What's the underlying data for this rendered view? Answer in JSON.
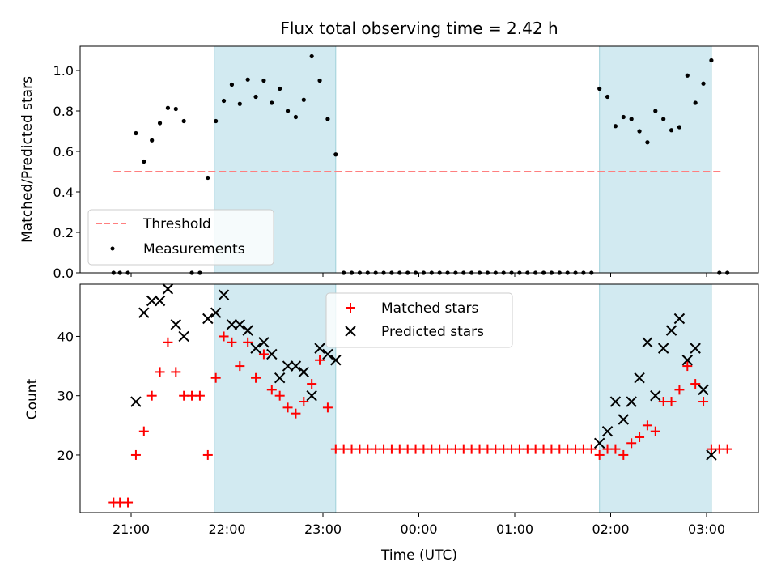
{
  "chart_data": [
    {
      "type": "scatter",
      "title": "Flux total observing time = 2.42 h",
      "xlabel": "",
      "ylabel": "Matched/Predicted stars",
      "x_axis": "time (UTC)",
      "ylim": [
        0,
        1.12
      ],
      "yticks": [
        0.0,
        0.2,
        0.4,
        0.6,
        0.8,
        1.0
      ],
      "yticklabels": [
        "0.0",
        "0.2",
        "0.4",
        "0.6",
        "0.8",
        "1.0"
      ],
      "grid": false,
      "legend_position": "lower-left",
      "shaded_intervals": [
        [
          "21:52",
          "23:08"
        ],
        [
          "01:53",
          "03:03"
        ]
      ],
      "shade_color": "#add8e6",
      "threshold": {
        "name": "Threshold",
        "value": 0.5,
        "x_range": [
          "20:49",
          "03:11"
        ],
        "color": "#ff7f7f",
        "style": "dashed"
      },
      "series": [
        {
          "name": "Measurements",
          "color": "#000000",
          "marker": "dot",
          "points": [
            [
              "20:49",
              0.0
            ],
            [
              "20:53",
              0.0
            ],
            [
              "20:58",
              0.0
            ],
            [
              "21:03",
              0.69
            ],
            [
              "21:08",
              0.55
            ],
            [
              "21:13",
              0.655
            ],
            [
              "21:18",
              0.74
            ],
            [
              "21:23",
              0.815
            ],
            [
              "21:28",
              0.81
            ],
            [
              "21:33",
              0.75
            ],
            [
              "21:38",
              0.0
            ],
            [
              "21:43",
              0.0
            ],
            [
              "21:48",
              0.47
            ],
            [
              "21:53",
              0.75
            ],
            [
              "21:58",
              0.85
            ],
            [
              "22:03",
              0.93
            ],
            [
              "22:08",
              0.835
            ],
            [
              "22:13",
              0.955
            ],
            [
              "22:18",
              0.87
            ],
            [
              "22:23",
              0.95
            ],
            [
              "22:28",
              0.84
            ],
            [
              "22:33",
              0.91
            ],
            [
              "22:38",
              0.8
            ],
            [
              "22:43",
              0.77
            ],
            [
              "22:48",
              0.855
            ],
            [
              "22:53",
              1.07
            ],
            [
              "22:58",
              0.95
            ],
            [
              "23:03",
              0.76
            ],
            [
              "23:08",
              0.585
            ],
            [
              "23:13",
              0.0
            ],
            [
              "23:18",
              0.0
            ],
            [
              "23:23",
              0.0
            ],
            [
              "23:28",
              0.0
            ],
            [
              "23:33",
              0.0
            ],
            [
              "23:38",
              0.0
            ],
            [
              "23:43",
              0.0
            ],
            [
              "23:48",
              0.0
            ],
            [
              "23:53",
              0.0
            ],
            [
              "23:58",
              0.0
            ],
            [
              "00:03",
              0.0
            ],
            [
              "00:08",
              0.0
            ],
            [
              "00:13",
              0.0
            ],
            [
              "00:18",
              0.0
            ],
            [
              "00:23",
              0.0
            ],
            [
              "00:28",
              0.0
            ],
            [
              "00:33",
              0.0
            ],
            [
              "00:38",
              0.0
            ],
            [
              "00:43",
              0.0
            ],
            [
              "00:48",
              0.0
            ],
            [
              "00:53",
              0.0
            ],
            [
              "00:58",
              0.0
            ],
            [
              "01:03",
              0.0
            ],
            [
              "01:08",
              0.0
            ],
            [
              "01:13",
              0.0
            ],
            [
              "01:18",
              0.0
            ],
            [
              "01:23",
              0.0
            ],
            [
              "01:28",
              0.0
            ],
            [
              "01:33",
              0.0
            ],
            [
              "01:38",
              0.0
            ],
            [
              "01:43",
              0.0
            ],
            [
              "01:48",
              0.0
            ],
            [
              "01:53",
              0.91
            ],
            [
              "01:58",
              0.87
            ],
            [
              "02:03",
              0.725
            ],
            [
              "02:08",
              0.77
            ],
            [
              "02:13",
              0.76
            ],
            [
              "02:18",
              0.7
            ],
            [
              "02:23",
              0.645
            ],
            [
              "02:28",
              0.8
            ],
            [
              "02:33",
              0.76
            ],
            [
              "02:38",
              0.705
            ],
            [
              "02:43",
              0.72
            ],
            [
              "02:48",
              0.975
            ],
            [
              "02:53",
              0.84
            ],
            [
              "02:58",
              0.935
            ],
            [
              "03:03",
              1.05
            ],
            [
              "03:08",
              0.0
            ],
            [
              "03:13",
              0.0
            ]
          ]
        }
      ]
    },
    {
      "type": "scatter",
      "title": "",
      "xlabel": "Time (UTC)",
      "ylabel": "Count",
      "ylim": [
        10.3,
        48.8
      ],
      "yticks": [
        20,
        30,
        40
      ],
      "yticklabels": [
        "20",
        "30",
        "40"
      ],
      "xticks": [
        "21:00",
        "22:00",
        "23:00",
        "00:00",
        "01:00",
        "02:00",
        "03:00"
      ],
      "xticklabels": [
        "21:00",
        "22:00",
        "23:00",
        "00:00",
        "01:00",
        "02:00",
        "03:00"
      ],
      "grid": false,
      "legend_position": "top-center",
      "shaded_intervals": [
        [
          "21:52",
          "23:08"
        ],
        [
          "01:53",
          "03:03"
        ]
      ],
      "shade_color": "#add8e6",
      "series": [
        {
          "name": "Matched stars",
          "color": "#ff0000",
          "marker": "plus",
          "points": [
            [
              "20:49",
              12
            ],
            [
              "20:53",
              12
            ],
            [
              "20:58",
              12
            ],
            [
              "21:03",
              20
            ],
            [
              "21:08",
              24
            ],
            [
              "21:13",
              30
            ],
            [
              "21:18",
              34
            ],
            [
              "21:23",
              39
            ],
            [
              "21:28",
              34
            ],
            [
              "21:33",
              30
            ],
            [
              "21:38",
              30
            ],
            [
              "21:43",
              30
            ],
            [
              "21:48",
              20
            ],
            [
              "21:53",
              33
            ],
            [
              "21:58",
              40
            ],
            [
              "22:03",
              39
            ],
            [
              "22:08",
              35
            ],
            [
              "22:13",
              39
            ],
            [
              "22:18",
              33
            ],
            [
              "22:23",
              37
            ],
            [
              "22:28",
              31
            ],
            [
              "22:33",
              30
            ],
            [
              "22:38",
              28
            ],
            [
              "22:43",
              27
            ],
            [
              "22:48",
              29
            ],
            [
              "22:53",
              32
            ],
            [
              "22:58",
              36
            ],
            [
              "23:03",
              28
            ],
            [
              "23:08",
              21
            ],
            [
              "23:13",
              21
            ],
            [
              "23:18",
              21
            ],
            [
              "23:23",
              21
            ],
            [
              "23:28",
              21
            ],
            [
              "23:33",
              21
            ],
            [
              "23:38",
              21
            ],
            [
              "23:43",
              21
            ],
            [
              "23:48",
              21
            ],
            [
              "23:53",
              21
            ],
            [
              "23:58",
              21
            ],
            [
              "00:03",
              21
            ],
            [
              "00:08",
              21
            ],
            [
              "00:13",
              21
            ],
            [
              "00:18",
              21
            ],
            [
              "00:23",
              21
            ],
            [
              "00:28",
              21
            ],
            [
              "00:33",
              21
            ],
            [
              "00:38",
              21
            ],
            [
              "00:43",
              21
            ],
            [
              "00:48",
              21
            ],
            [
              "00:53",
              21
            ],
            [
              "00:58",
              21
            ],
            [
              "01:03",
              21
            ],
            [
              "01:08",
              21
            ],
            [
              "01:13",
              21
            ],
            [
              "01:18",
              21
            ],
            [
              "01:23",
              21
            ],
            [
              "01:28",
              21
            ],
            [
              "01:33",
              21
            ],
            [
              "01:38",
              21
            ],
            [
              "01:43",
              21
            ],
            [
              "01:48",
              21
            ],
            [
              "01:53",
              20
            ],
            [
              "01:58",
              21
            ],
            [
              "02:03",
              21
            ],
            [
              "02:08",
              20
            ],
            [
              "02:13",
              22
            ],
            [
              "02:18",
              23
            ],
            [
              "02:23",
              25
            ],
            [
              "02:28",
              24
            ],
            [
              "02:33",
              29
            ],
            [
              "02:38",
              29
            ],
            [
              "02:43",
              31
            ],
            [
              "02:48",
              35
            ],
            [
              "02:53",
              32
            ],
            [
              "02:58",
              29
            ],
            [
              "03:03",
              21
            ],
            [
              "03:08",
              21
            ],
            [
              "03:13",
              21
            ]
          ]
        },
        {
          "name": "Predicted stars",
          "color": "#000000",
          "marker": "x",
          "points": [
            [
              "21:03",
              29
            ],
            [
              "21:08",
              44
            ],
            [
              "21:13",
              46
            ],
            [
              "21:18",
              46
            ],
            [
              "21:23",
              48
            ],
            [
              "21:28",
              42
            ],
            [
              "21:33",
              40
            ],
            [
              "21:48",
              43
            ],
            [
              "21:53",
              44
            ],
            [
              "21:58",
              47
            ],
            [
              "22:03",
              42
            ],
            [
              "22:08",
              42
            ],
            [
              "22:13",
              41
            ],
            [
              "22:18",
              38
            ],
            [
              "22:23",
              39
            ],
            [
              "22:28",
              37
            ],
            [
              "22:33",
              33
            ],
            [
              "22:38",
              35
            ],
            [
              "22:43",
              35
            ],
            [
              "22:48",
              34
            ],
            [
              "22:53",
              30
            ],
            [
              "22:58",
              38
            ],
            [
              "23:03",
              37
            ],
            [
              "23:08",
              36
            ],
            [
              "01:53",
              22
            ],
            [
              "01:58",
              24
            ],
            [
              "02:03",
              29
            ],
            [
              "02:08",
              26
            ],
            [
              "02:13",
              29
            ],
            [
              "02:18",
              33
            ],
            [
              "02:23",
              39
            ],
            [
              "02:28",
              30
            ],
            [
              "02:33",
              38
            ],
            [
              "02:38",
              41
            ],
            [
              "02:43",
              43
            ],
            [
              "02:48",
              36
            ],
            [
              "02:53",
              38
            ],
            [
              "02:58",
              31
            ],
            [
              "03:03",
              20
            ]
          ]
        }
      ]
    }
  ]
}
